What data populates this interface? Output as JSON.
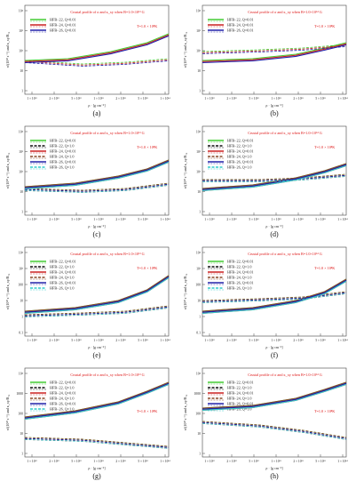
{
  "figure": {
    "panels": [
      {
        "label": "(a)",
        "title": "Crustal profile of σ and κ_xy when B=1.0×10¹³ G",
        "temp": "T=1.0 × 10⁸K",
        "xlabel": "ρ · [g cm⁻³]",
        "ylabel": "σ/(10²² s⁻¹) and κ_xy/B₁₄",
        "legend": [
          "HFB−22, Q=0.01",
          "HFB−24, Q=0.01",
          "HFB−26, Q=0.01"
        ],
        "legend_colors": [
          "#44cc33",
          "#cc2222",
          "#2222aa"
        ],
        "ytick_labels": [
          "10⁴",
          "10³",
          "10²",
          "10",
          "1"
        ]
      },
      {
        "label": "(b)",
        "title": "Crustal profile of σ and κ_xy when B=1.0×10¹⁴ G",
        "temp": "T=1.0 × 10⁸K",
        "xlabel": "ρ · [g cm⁻³]",
        "ylabel": "σ/(10²² s⁻¹) and κ_xy/B₁₄",
        "legend": [
          "HFB−22, Q=0.01",
          "HFB−24, Q=0.01",
          "HFB−26, Q=0.01"
        ],
        "legend_colors": [
          "#44cc33",
          "#cc2222",
          "#2222aa"
        ],
        "ytick_labels": [
          "10⁴",
          "10³",
          "10²",
          "10",
          "1"
        ]
      },
      {
        "label": "(c)",
        "title": "Crustal profile of σ and κ_xy when B=1.0×10¹³ G",
        "temp": "T=1.0 × 10⁸K",
        "xlabel": "ρ · [g cm⁻³]",
        "ylabel": "σ/(10²² s⁻¹) and κ_xy/B₁₄",
        "legend": [
          "HFB−22, Q=0.01",
          "HFB−22, Q=1.0",
          "HFB−24, Q=0.01",
          "HFB−24, Q=1.0",
          "HFB−26, Q=0.01",
          "HFB−26, Q=1.0"
        ],
        "legend_colors": [
          "#44cc33",
          "#111111",
          "#cc2222",
          "#8a4a2a",
          "#2222aa",
          "#33cccc"
        ],
        "ytick_labels": [
          "10⁴",
          "10³",
          "10²",
          "10",
          "1"
        ]
      },
      {
        "label": "(d)",
        "title": "Crustal profile of σ and κ_xy when B=1.0×10¹⁴ G",
        "temp": "T=1.0 × 10⁸K",
        "xlabel": "ρ · [g cm⁻³]",
        "ylabel": "σ/(10²² s⁻¹) and κ_xy/B₁₄",
        "legend": [
          "HFB−22, Q=0.01",
          "HFB−22, Q=1.0",
          "HFB−24, Q=0.01",
          "HFB−24, Q=1.0",
          "HFB−26, Q=0.01",
          "HFB−26, Q=1.0"
        ],
        "legend_colors": [
          "#44cc33",
          "#111111",
          "#cc2222",
          "#8a4a2a",
          "#2222aa",
          "#33cccc"
        ],
        "ytick_labels": [
          "10⁴",
          "10³",
          "10²",
          "10",
          "1"
        ]
      },
      {
        "label": "(e)",
        "title": "Crustal profile of σ and κ_xy when B=1.0×10¹³ G",
        "temp": "T=1.0 × 10⁸K",
        "xlabel": "ρ · [g cm⁻³]",
        "ylabel": "σ/(10²² s⁻¹) and κ_xy/B₁₄",
        "legend": [
          "HFB−22, Q=0.01",
          "HFB−22, Q=1.0",
          "HFB−24, Q=0.01",
          "HFB−24, Q=1.0",
          "HFB−26, Q=0.01",
          "HFB−26, Q=1.0"
        ],
        "legend_colors": [
          "#44cc33",
          "#111111",
          "#cc2222",
          "#8a4a2a",
          "#2222aa",
          "#33cccc"
        ],
        "ytick_labels": [
          "10⁴",
          "10³",
          "100",
          "10",
          "1",
          "0.1"
        ]
      },
      {
        "label": "(f)",
        "title": "Crustal profile of σ and κ_xy when B=1.0×10¹⁴ G",
        "temp": "T=1.0 × 10⁸K",
        "xlabel": "ρ · [g cm⁻³]",
        "ylabel": "σ/(10²² s⁻¹) and κ_xy/B₁₄",
        "legend": [
          "HFB−22, Q=0.01",
          "HFB−22, Q=1.0",
          "HFB−24, Q=0.01",
          "HFB−24, Q=1.0",
          "HFB−26, Q=0.01",
          "HFB−26, Q=1.0"
        ],
        "legend_colors": [
          "#44cc33",
          "#111111",
          "#cc2222",
          "#8a4a2a",
          "#2222aa",
          "#33cccc"
        ],
        "ytick_labels": [
          "10⁴",
          "10³",
          "100",
          "10",
          "1",
          "0.1"
        ]
      },
      {
        "label": "(g)",
        "title": "Crustal profile of σ and κ_xy when B=1.0×10¹³ G",
        "temp": "T=1.0 × 10⁸K",
        "xlabel": "ρ · [g cm⁻³]",
        "ylabel": "σ/(10²² s⁻¹) and κ_xy/B₁₄",
        "legend": [
          "HFB−22, Q=0.01",
          "HFB−22, Q=1.0",
          "HFB−24, Q=0.01",
          "HFB−24, Q=1.0",
          "HFB−26, Q=0.01",
          "HFB−26, Q=1.0"
        ],
        "legend_colors": [
          "#44cc33",
          "#111111",
          "#cc2222",
          "#8a4a2a",
          "#2222aa",
          "#33cccc"
        ],
        "ytick_labels": [
          "10⁴",
          "1000",
          "100",
          "10",
          "1"
        ]
      },
      {
        "label": "(h)",
        "title": "Crustal profile of σ and κ_xy when B=1.0×10¹⁴ G",
        "temp": "T=1.0 × 10⁸K",
        "xlabel": "ρ · [g cm⁻³]",
        "ylabel": "σ/(10²² s⁻¹) and κ_xy/B₁₄",
        "legend": [
          "HFB−22, Q=0.01",
          "HFB−22, Q=1.0",
          "HFB−24, Q=0.01",
          "HFB−24, Q=1.0",
          "HFB−26, Q=0.01",
          "HFB−26, Q=1.0"
        ],
        "legend_colors": [
          "#44cc33",
          "#111111",
          "#cc2222",
          "#8a4a2a",
          "#2222aa",
          "#33cccc"
        ],
        "ytick_labels": [
          "10⁴",
          "1000",
          "100",
          "10",
          "1"
        ]
      }
    ],
    "xtick_labels": [
      "1 × 10¹²",
      "2 × 10¹²",
      "5 × 10¹²",
      "1 × 10¹³",
      "2 × 10¹³",
      "5 × 10¹³",
      "1 × 10¹⁴"
    ]
  }
}
